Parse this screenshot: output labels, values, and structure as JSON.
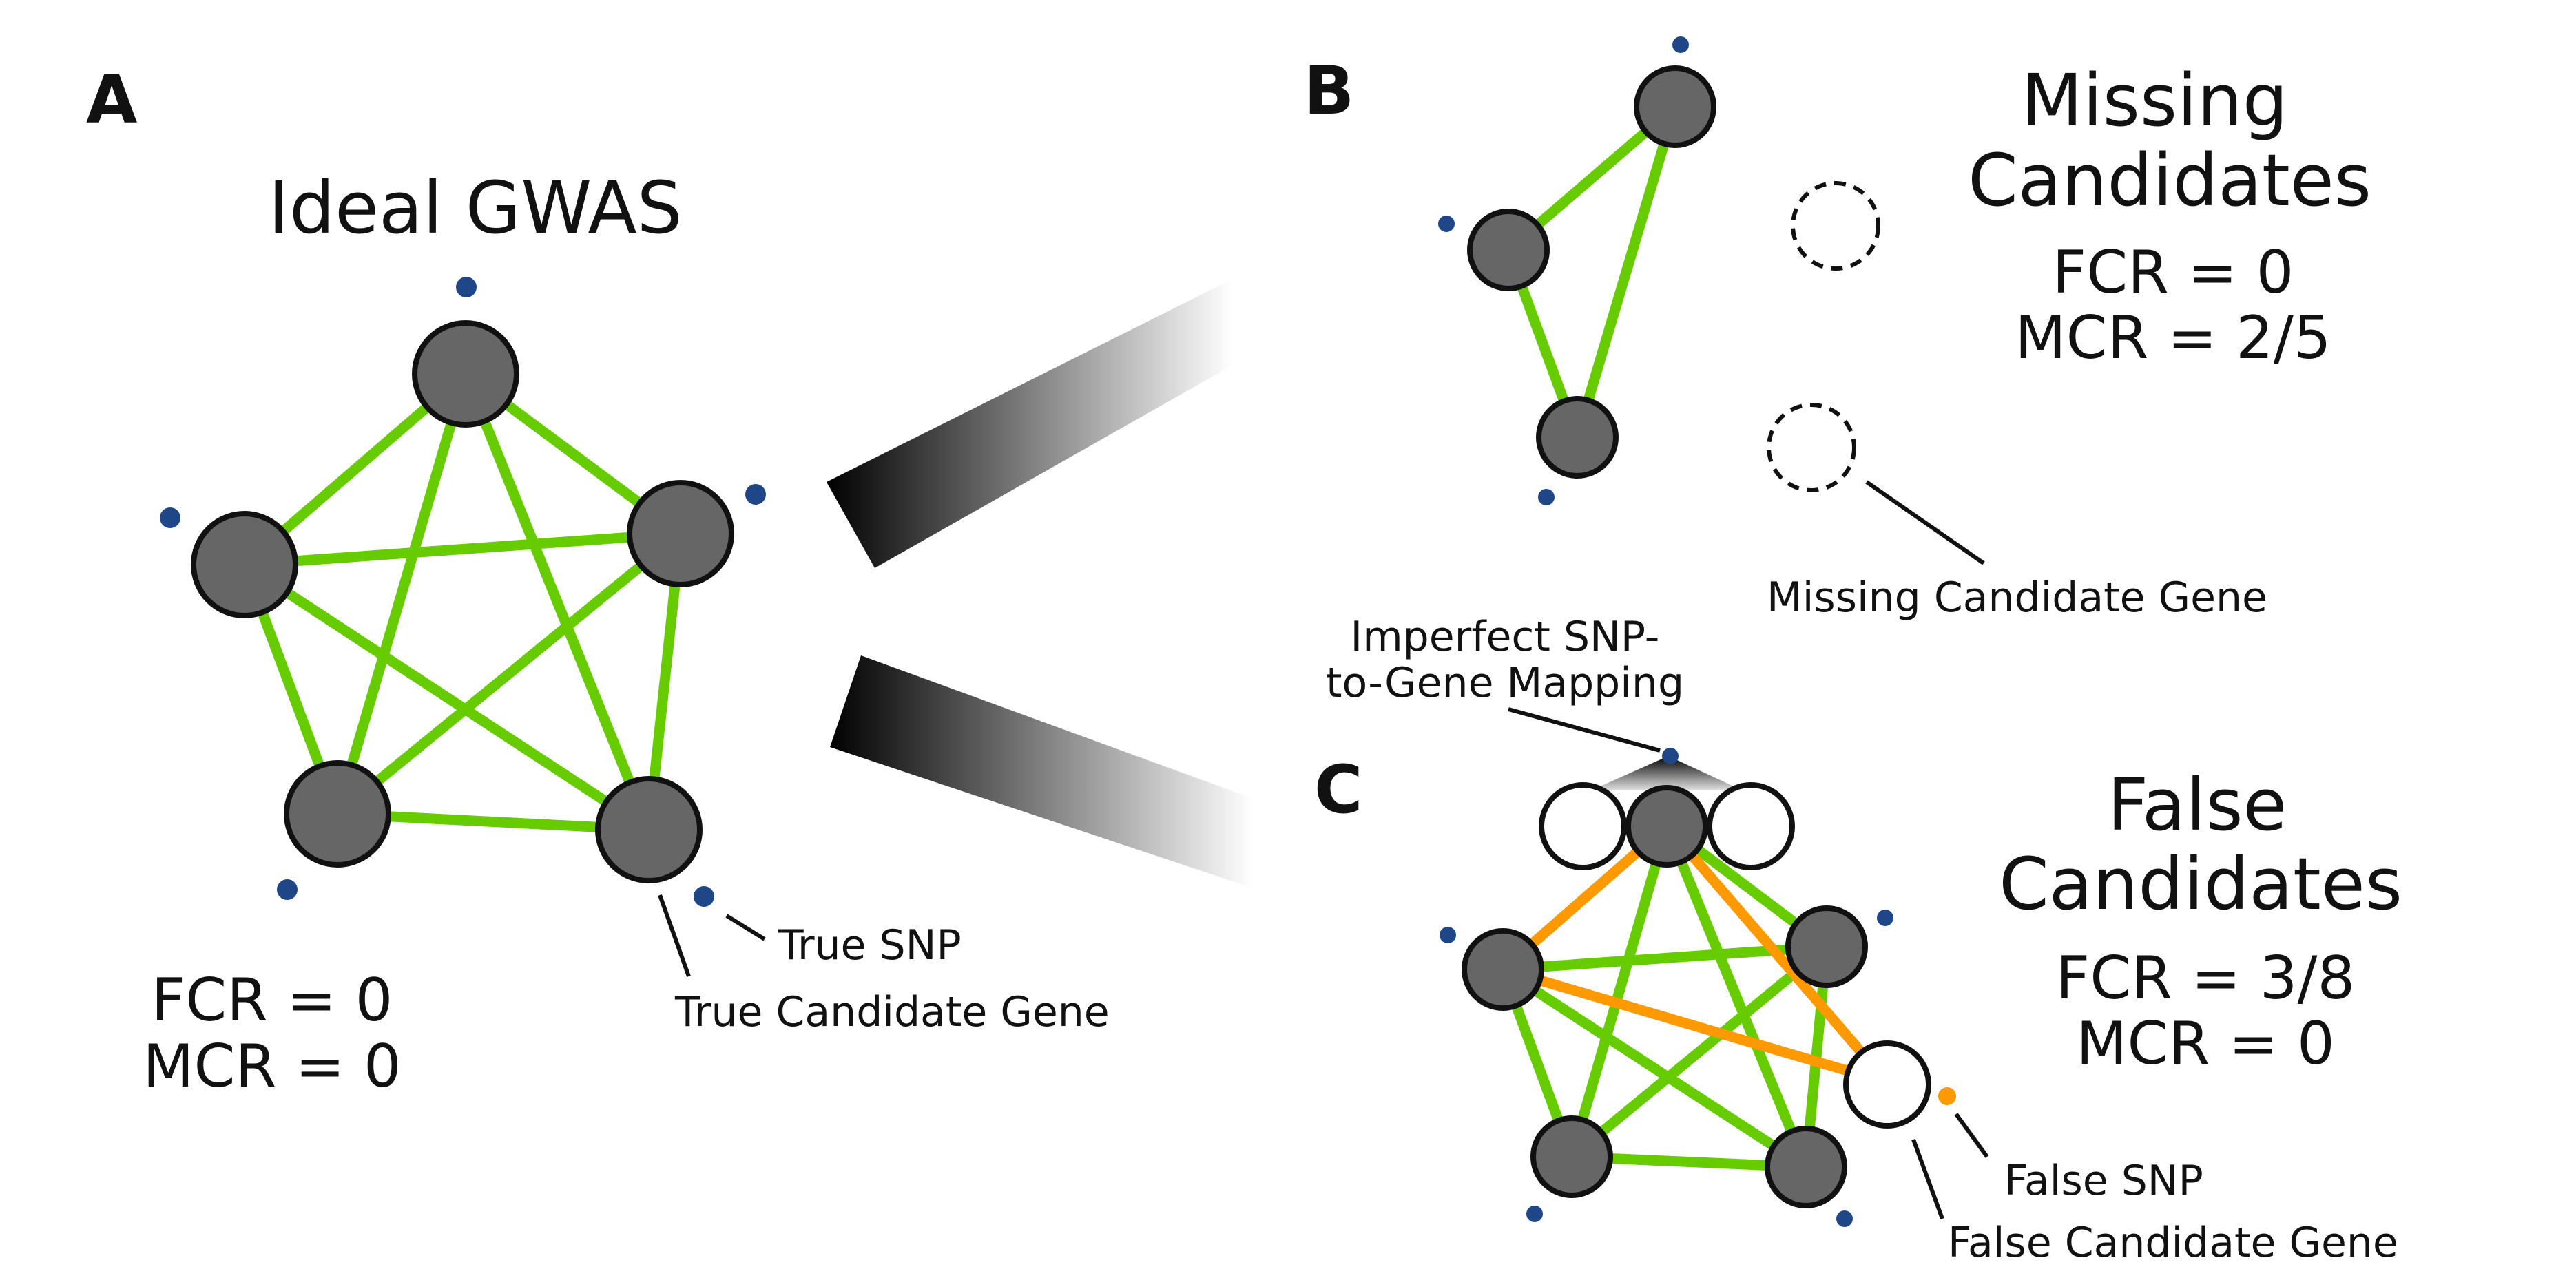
{
  "colors": {
    "true_gene": "#666666",
    "false_gene": "#ffffff",
    "true_edge": "#66cc00",
    "false_edge": "#ff9900",
    "true_snp": "#1f4788",
    "false_snp": "#ff9900",
    "outline": "#111111"
  },
  "panels": {
    "a": {
      "letter": "A",
      "title": "Ideal GWAS",
      "fcr": "FCR = 0",
      "mcr": "MCR = 0",
      "callouts": {
        "true_snp": "True SNP",
        "true_candidate_gene": "True Candidate Gene"
      }
    },
    "b": {
      "letter": "B",
      "title_line1": "Missing",
      "title_line2": "Candidates",
      "fcr": "FCR = 0",
      "mcr": "MCR = 2/5",
      "callouts": {
        "missing_candidate_gene": "Missing Candidate Gene"
      }
    },
    "c": {
      "letter": "C",
      "title_line1": "False",
      "title_line2": "Candidates",
      "fcr": "FCR = 3/8",
      "mcr": "MCR = 0",
      "callouts": {
        "imperfect_line1": "Imperfect SNP-",
        "imperfect_line2": "to-Gene Mapping",
        "false_snp": "False SNP",
        "false_candidate_gene": "False Candidate Gene"
      }
    }
  }
}
